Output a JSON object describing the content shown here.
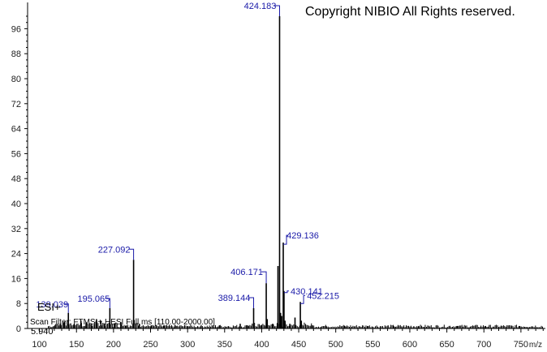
{
  "copyright": "Copyright NIBIO All Rights reserved.",
  "ion_mode": "ESI+",
  "scan_filter": "Scan Filter: FTMS + HESI Full ms [110.00-2000.00]",
  "base_value": "5.940",
  "chart_data": {
    "type": "bar",
    "title": "",
    "xlabel": "m/z",
    "ylabel": "",
    "xlim": [
      84,
      783
    ],
    "ylim": [
      0,
      100
    ],
    "xticks": [
      100,
      150,
      200,
      250,
      300,
      350,
      400,
      450,
      500,
      550,
      600,
      650,
      700,
      750
    ],
    "yticks": [
      0,
      8,
      16,
      24,
      32,
      40,
      48,
      56,
      64,
      72,
      80,
      88,
      96
    ],
    "grid": false,
    "peaks": [
      {
        "mz": 139.039,
        "intensity": 5.0,
        "label": "139.039"
      },
      {
        "mz": 195.065,
        "intensity": 6.5,
        "label": "195.065"
      },
      {
        "mz": 227.092,
        "intensity": 22.0,
        "label": "227.092"
      },
      {
        "mz": 389.144,
        "intensity": 6.5,
        "label": "389.144"
      },
      {
        "mz": 406.171,
        "intensity": 14.5,
        "label": "406.171"
      },
      {
        "mz": 424.183,
        "intensity": 100.0,
        "label": "424.183"
      },
      {
        "mz": 429.136,
        "intensity": 27.5,
        "label": "429.136"
      },
      {
        "mz": 430.141,
        "intensity": 12.0,
        "label": "430.141"
      },
      {
        "mz": 452.215,
        "intensity": 8.5,
        "label": "452.215"
      }
    ],
    "minor_peaks": [
      {
        "mz": 121,
        "intensity": 1.0
      },
      {
        "mz": 128,
        "intensity": 1.5
      },
      {
        "mz": 133,
        "intensity": 2.0
      },
      {
        "mz": 147,
        "intensity": 1.5
      },
      {
        "mz": 156,
        "intensity": 2.5
      },
      {
        "mz": 163,
        "intensity": 2.0
      },
      {
        "mz": 170,
        "intensity": 1.5
      },
      {
        "mz": 177,
        "intensity": 3.0
      },
      {
        "mz": 183,
        "intensity": 2.5
      },
      {
        "mz": 188,
        "intensity": 1.5
      },
      {
        "mz": 201,
        "intensity": 1.5
      },
      {
        "mz": 210,
        "intensity": 2.0
      },
      {
        "mz": 217,
        "intensity": 1.0
      },
      {
        "mz": 235,
        "intensity": 1.5
      },
      {
        "mz": 251,
        "intensity": 1.0
      },
      {
        "mz": 268,
        "intensity": 1.0
      },
      {
        "mz": 283,
        "intensity": 1.0
      },
      {
        "mz": 300,
        "intensity": 0.8
      },
      {
        "mz": 318,
        "intensity": 0.8
      },
      {
        "mz": 343,
        "intensity": 1.0
      },
      {
        "mz": 371,
        "intensity": 1.5
      },
      {
        "mz": 381,
        "intensity": 1.0
      },
      {
        "mz": 399,
        "intensity": 1.0
      },
      {
        "mz": 407.5,
        "intensity": 3.0
      },
      {
        "mz": 415,
        "intensity": 1.5
      },
      {
        "mz": 422,
        "intensity": 20.0
      },
      {
        "mz": 425.5,
        "intensity": 5.0
      },
      {
        "mz": 427,
        "intensity": 4.0
      },
      {
        "mz": 431.5,
        "intensity": 2.5
      },
      {
        "mz": 438,
        "intensity": 1.5
      },
      {
        "mz": 445,
        "intensity": 3.5
      },
      {
        "mz": 453.5,
        "intensity": 2.5
      },
      {
        "mz": 468,
        "intensity": 1.0
      },
      {
        "mz": 487,
        "intensity": 0.8
      },
      {
        "mz": 512,
        "intensity": 0.8
      },
      {
        "mz": 543,
        "intensity": 0.8
      },
      {
        "mz": 578,
        "intensity": 0.8
      },
      {
        "mz": 612,
        "intensity": 0.8
      },
      {
        "mz": 664,
        "intensity": 0.8
      },
      {
        "mz": 702,
        "intensity": 0.8
      },
      {
        "mz": 748,
        "intensity": 0.8
      }
    ]
  }
}
